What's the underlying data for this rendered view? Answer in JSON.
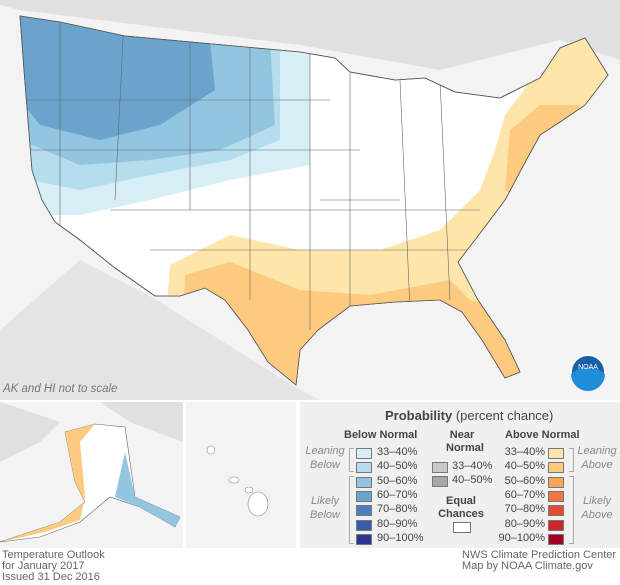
{
  "map": {
    "note": "AK and HI not to scale",
    "title_lines": [
      "Temperature Outlook",
      "for January 2017",
      "Issued 31 Dec 2016"
    ],
    "credit_lines": [
      "NWS Climate Prediction Center",
      "Map by NOAA Climate.gov"
    ],
    "logo_text": "NOAA"
  },
  "legend": {
    "title": "Probability",
    "subtitle": "(percent chance)",
    "below": {
      "header": "Below Normal",
      "leaning": "Leaning Below",
      "likely": "Likely Below",
      "items": [
        {
          "label": "33–40%",
          "color": "#d7eef6"
        },
        {
          "label": "40–50%",
          "color": "#b5dded"
        },
        {
          "label": "50–60%",
          "color": "#92c6e0"
        },
        {
          "label": "60–70%",
          "color": "#6aa4cd"
        },
        {
          "label": "70–80%",
          "color": "#4a80bf"
        },
        {
          "label": "80–90%",
          "color": "#3a5ca8"
        },
        {
          "label": "90–100%",
          "color": "#2c3490"
        }
      ]
    },
    "near": {
      "header1": "Near",
      "header2": "Normal",
      "items": [
        {
          "label": "33–40%",
          "color": "#c8c8c8"
        },
        {
          "label": "40–50%",
          "color": "#a6a6a6"
        }
      ]
    },
    "equal": {
      "label1": "Equal",
      "label2": "Chances",
      "color": "#ffffff"
    },
    "above": {
      "header": "Above Normal",
      "leaning": "Leaning Above",
      "likely": "Likely Above",
      "items": [
        {
          "label": "33–40%",
          "color": "#fee6aa"
        },
        {
          "label": "40–50%",
          "color": "#fdcb80"
        },
        {
          "label": "50–60%",
          "color": "#faa655"
        },
        {
          "label": "60–70%",
          "color": "#f27441"
        },
        {
          "label": "70–80%",
          "color": "#e24a32"
        },
        {
          "label": "80–90%",
          "color": "#cc2626"
        },
        {
          "label": "90–100%",
          "color": "#a20025"
        }
      ]
    }
  }
}
